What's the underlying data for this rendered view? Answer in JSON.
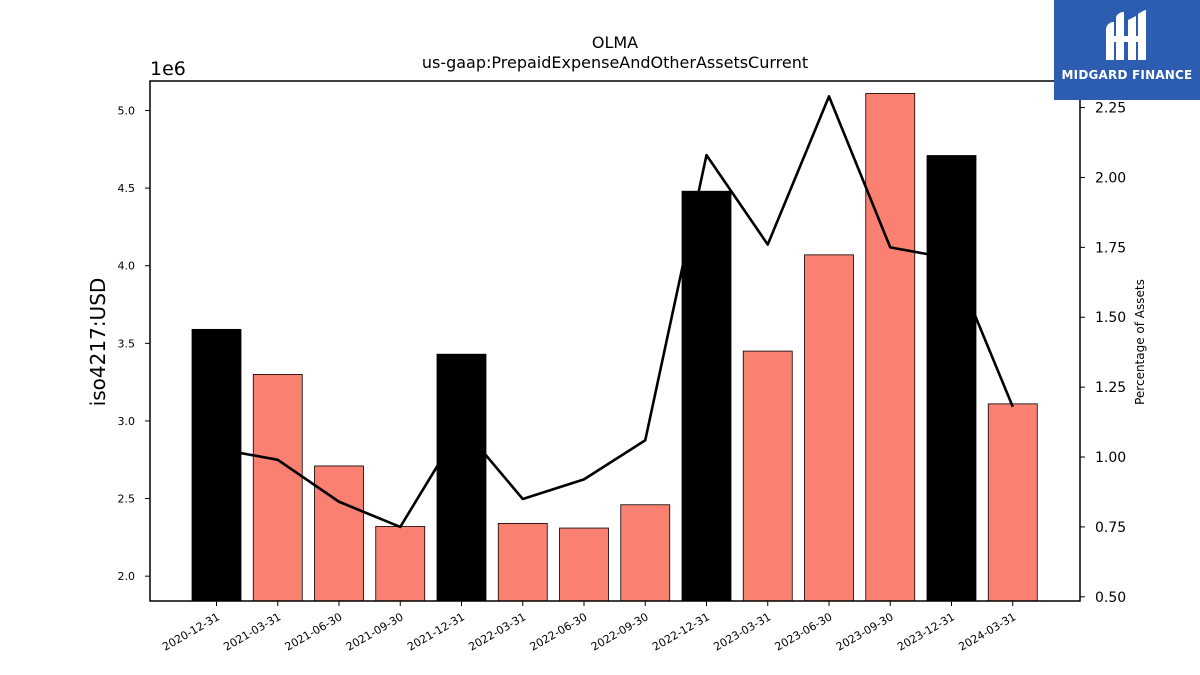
{
  "chart_data": {
    "type": "bar",
    "title": "OLMA",
    "subtitle": "us-gaap:PrepaidExpenseAndOtherAssetsCurrent",
    "ylabel": "iso4217:USD",
    "y_offset_label": "1e6",
    "y2label": "Percentage of Assets",
    "categories": [
      "2020-12-31",
      "2021-03-31",
      "2021-06-30",
      "2021-09-30",
      "2021-12-31",
      "2022-03-31",
      "2022-06-30",
      "2022-09-30",
      "2022-12-31",
      "2023-03-31",
      "2023-06-30",
      "2023-09-30",
      "2023-12-31",
      "2024-03-31"
    ],
    "values": [
      3590000,
      3300000,
      2710000,
      2320000,
      3430000,
      2340000,
      2310000,
      2460000,
      4480000,
      3450000,
      4070000,
      5110000,
      4710000,
      3110000
    ],
    "bar_colors": [
      "#000000",
      "#fa8072",
      "#fa8072",
      "#fa8072",
      "#000000",
      "#fa8072",
      "#fa8072",
      "#fa8072",
      "#000000",
      "#fa8072",
      "#fa8072",
      "#fa8072",
      "#000000",
      "#fa8072"
    ],
    "line_series": {
      "name": "Percentage of Assets",
      "values": [
        1.03,
        0.99,
        0.84,
        0.75,
        1.11,
        0.85,
        0.92,
        1.06,
        2.08,
        1.76,
        2.29,
        1.75,
        1.71,
        1.18
      ]
    },
    "ylim": [
      1.84,
      5.19
    ],
    "y_ticks": [
      2.0,
      2.5,
      3.0,
      3.5,
      4.0,
      4.5,
      5.0
    ],
    "y_tick_labels": [
      "2.0",
      "2.5",
      "3.0",
      "3.5",
      "4.0",
      "4.5",
      "5.0"
    ],
    "y2lim": [
      0.485,
      2.345
    ],
    "y2_ticks": [
      0.5,
      0.75,
      1.0,
      1.25,
      1.5,
      1.75,
      2.0,
      2.25
    ],
    "y2_tick_labels": [
      "0.50",
      "0.75",
      "1.00",
      "1.25",
      "1.50",
      "1.75",
      "2.00",
      "2.25"
    ],
    "grid": false,
    "colors": {
      "highlight": "#000000",
      "bar": "#fa8072",
      "line": "#000000"
    }
  },
  "logo": {
    "text": "MIDGARD FINANCE",
    "background": "#2c5db0"
  }
}
